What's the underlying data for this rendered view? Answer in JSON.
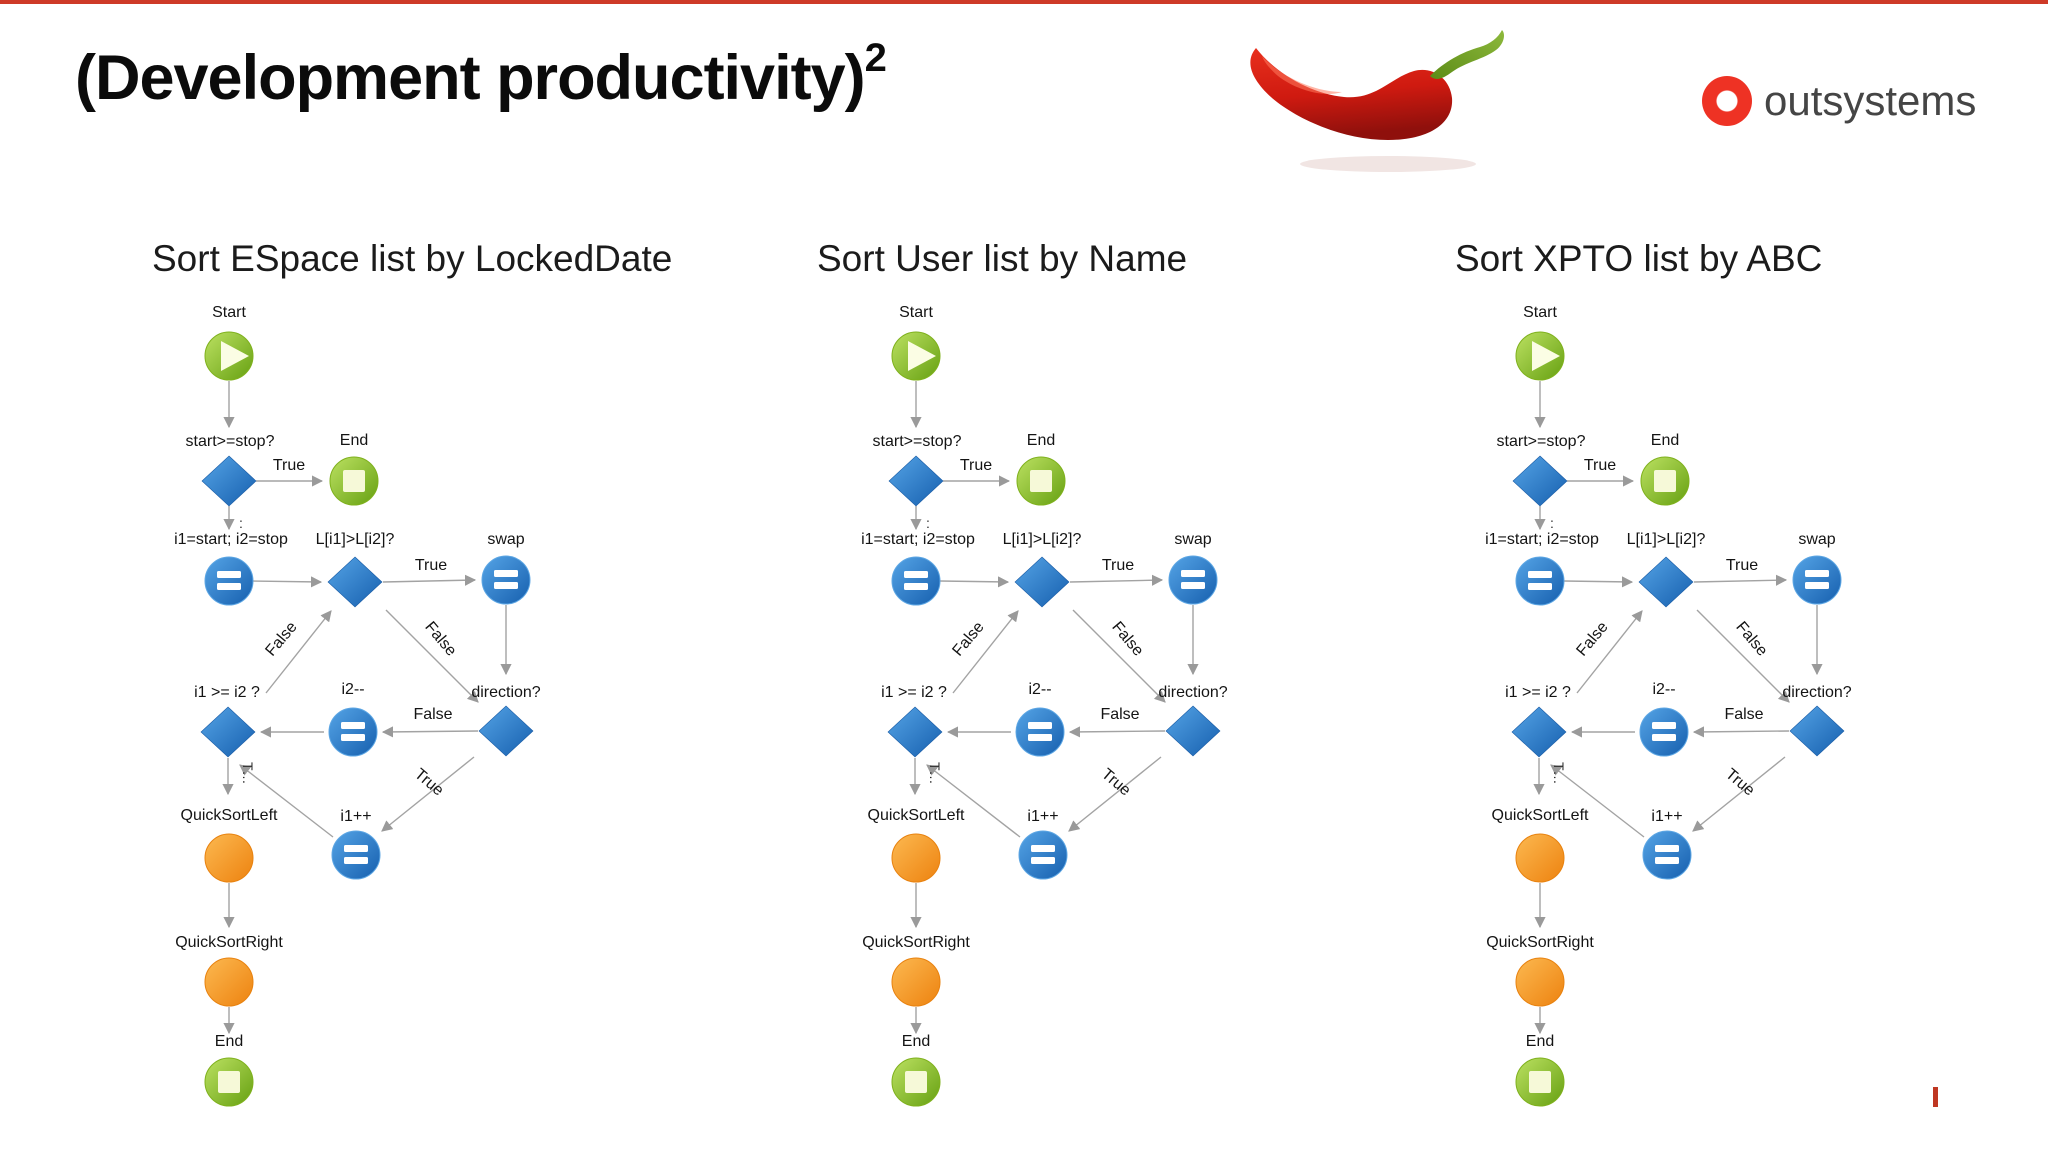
{
  "page": {
    "background": "#ffffff",
    "top_bar_color": "#ce3a28",
    "footer_tick_color": "#bf3722"
  },
  "header": {
    "title": "(Development productivity)",
    "title_exponent": "2",
    "pepper_icon": "red-chili-pepper",
    "logo": {
      "text": "outsystems",
      "dot_color": "#ee3224"
    }
  },
  "charts": [
    {
      "title": "Sort ESpace list by LockedDate"
    },
    {
      "title": "Sort User list by Name"
    },
    {
      "title": "Sort XPTO list by ABC"
    }
  ],
  "flow": {
    "start_label": "Start",
    "cond_start_stop": "start>=stop?",
    "end_label": "End",
    "true_label": "True",
    "false_label": "False",
    "assign_init": "i1=start; i2=stop",
    "cond_compare": "L[i1]>L[i2]?",
    "swap_label": "swap",
    "direction_label": "direction?",
    "cond_i1_i2": "i1 >= i2 ?",
    "i2_decrement": "i2--",
    "i1_increment": "i1++",
    "quicksort_left": "QuickSortLeft",
    "quicksort_right": "QuickSortRight",
    "clipped_true_label": "T…",
    "clipped_label_dots": ":",
    "icons": {
      "start": "play-icon",
      "end": "stop-square-icon",
      "assign": "equals-icon",
      "decision": "diamond-icon",
      "subroutine": "orange-circle-icon"
    },
    "colors": {
      "node_blue": "#2a7fd0",
      "node_green": "#84bc1e",
      "node_orange": "#f5911e",
      "arrow": "#9a9a9a"
    }
  }
}
